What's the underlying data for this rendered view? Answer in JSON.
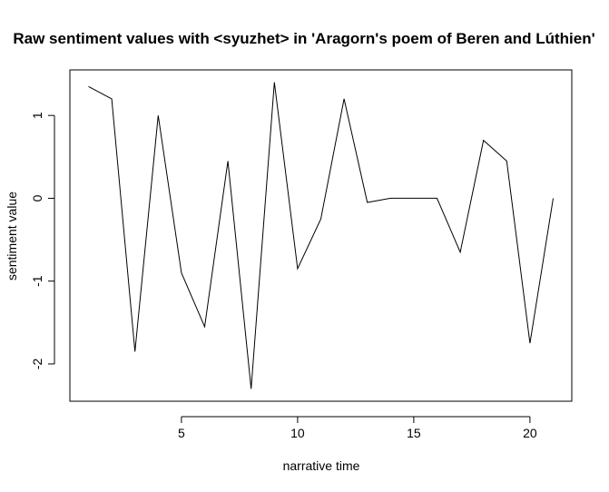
{
  "chart_data": {
    "type": "line",
    "title": "Raw sentiment values with <syuzhet> in 'Aragorn's poem of Beren and Lúthien'",
    "xlabel": "narrative time",
    "ylabel": "sentiment value",
    "x": [
      1,
      2,
      3,
      4,
      5,
      6,
      7,
      8,
      9,
      10,
      11,
      12,
      13,
      14,
      15,
      16,
      17,
      18,
      19,
      20,
      21
    ],
    "series": [
      {
        "values": [
          1.35,
          1.2,
          -1.85,
          1.0,
          -0.9,
          -1.55,
          0.45,
          -2.3,
          1.4,
          -0.85,
          -0.25,
          1.2,
          -0.05,
          0.0,
          0.0,
          0.0,
          -0.65,
          0.7,
          0.45,
          -1.75,
          0.0
        ]
      }
    ],
    "xlim": [
      0.2,
      21.8
    ],
    "ylim": [
      -2.45,
      1.55
    ],
    "x_ticks": [
      5,
      10,
      15,
      20
    ],
    "y_ticks": [
      -2,
      -1,
      0,
      1
    ],
    "grid": false,
    "line_color": "#000000"
  }
}
